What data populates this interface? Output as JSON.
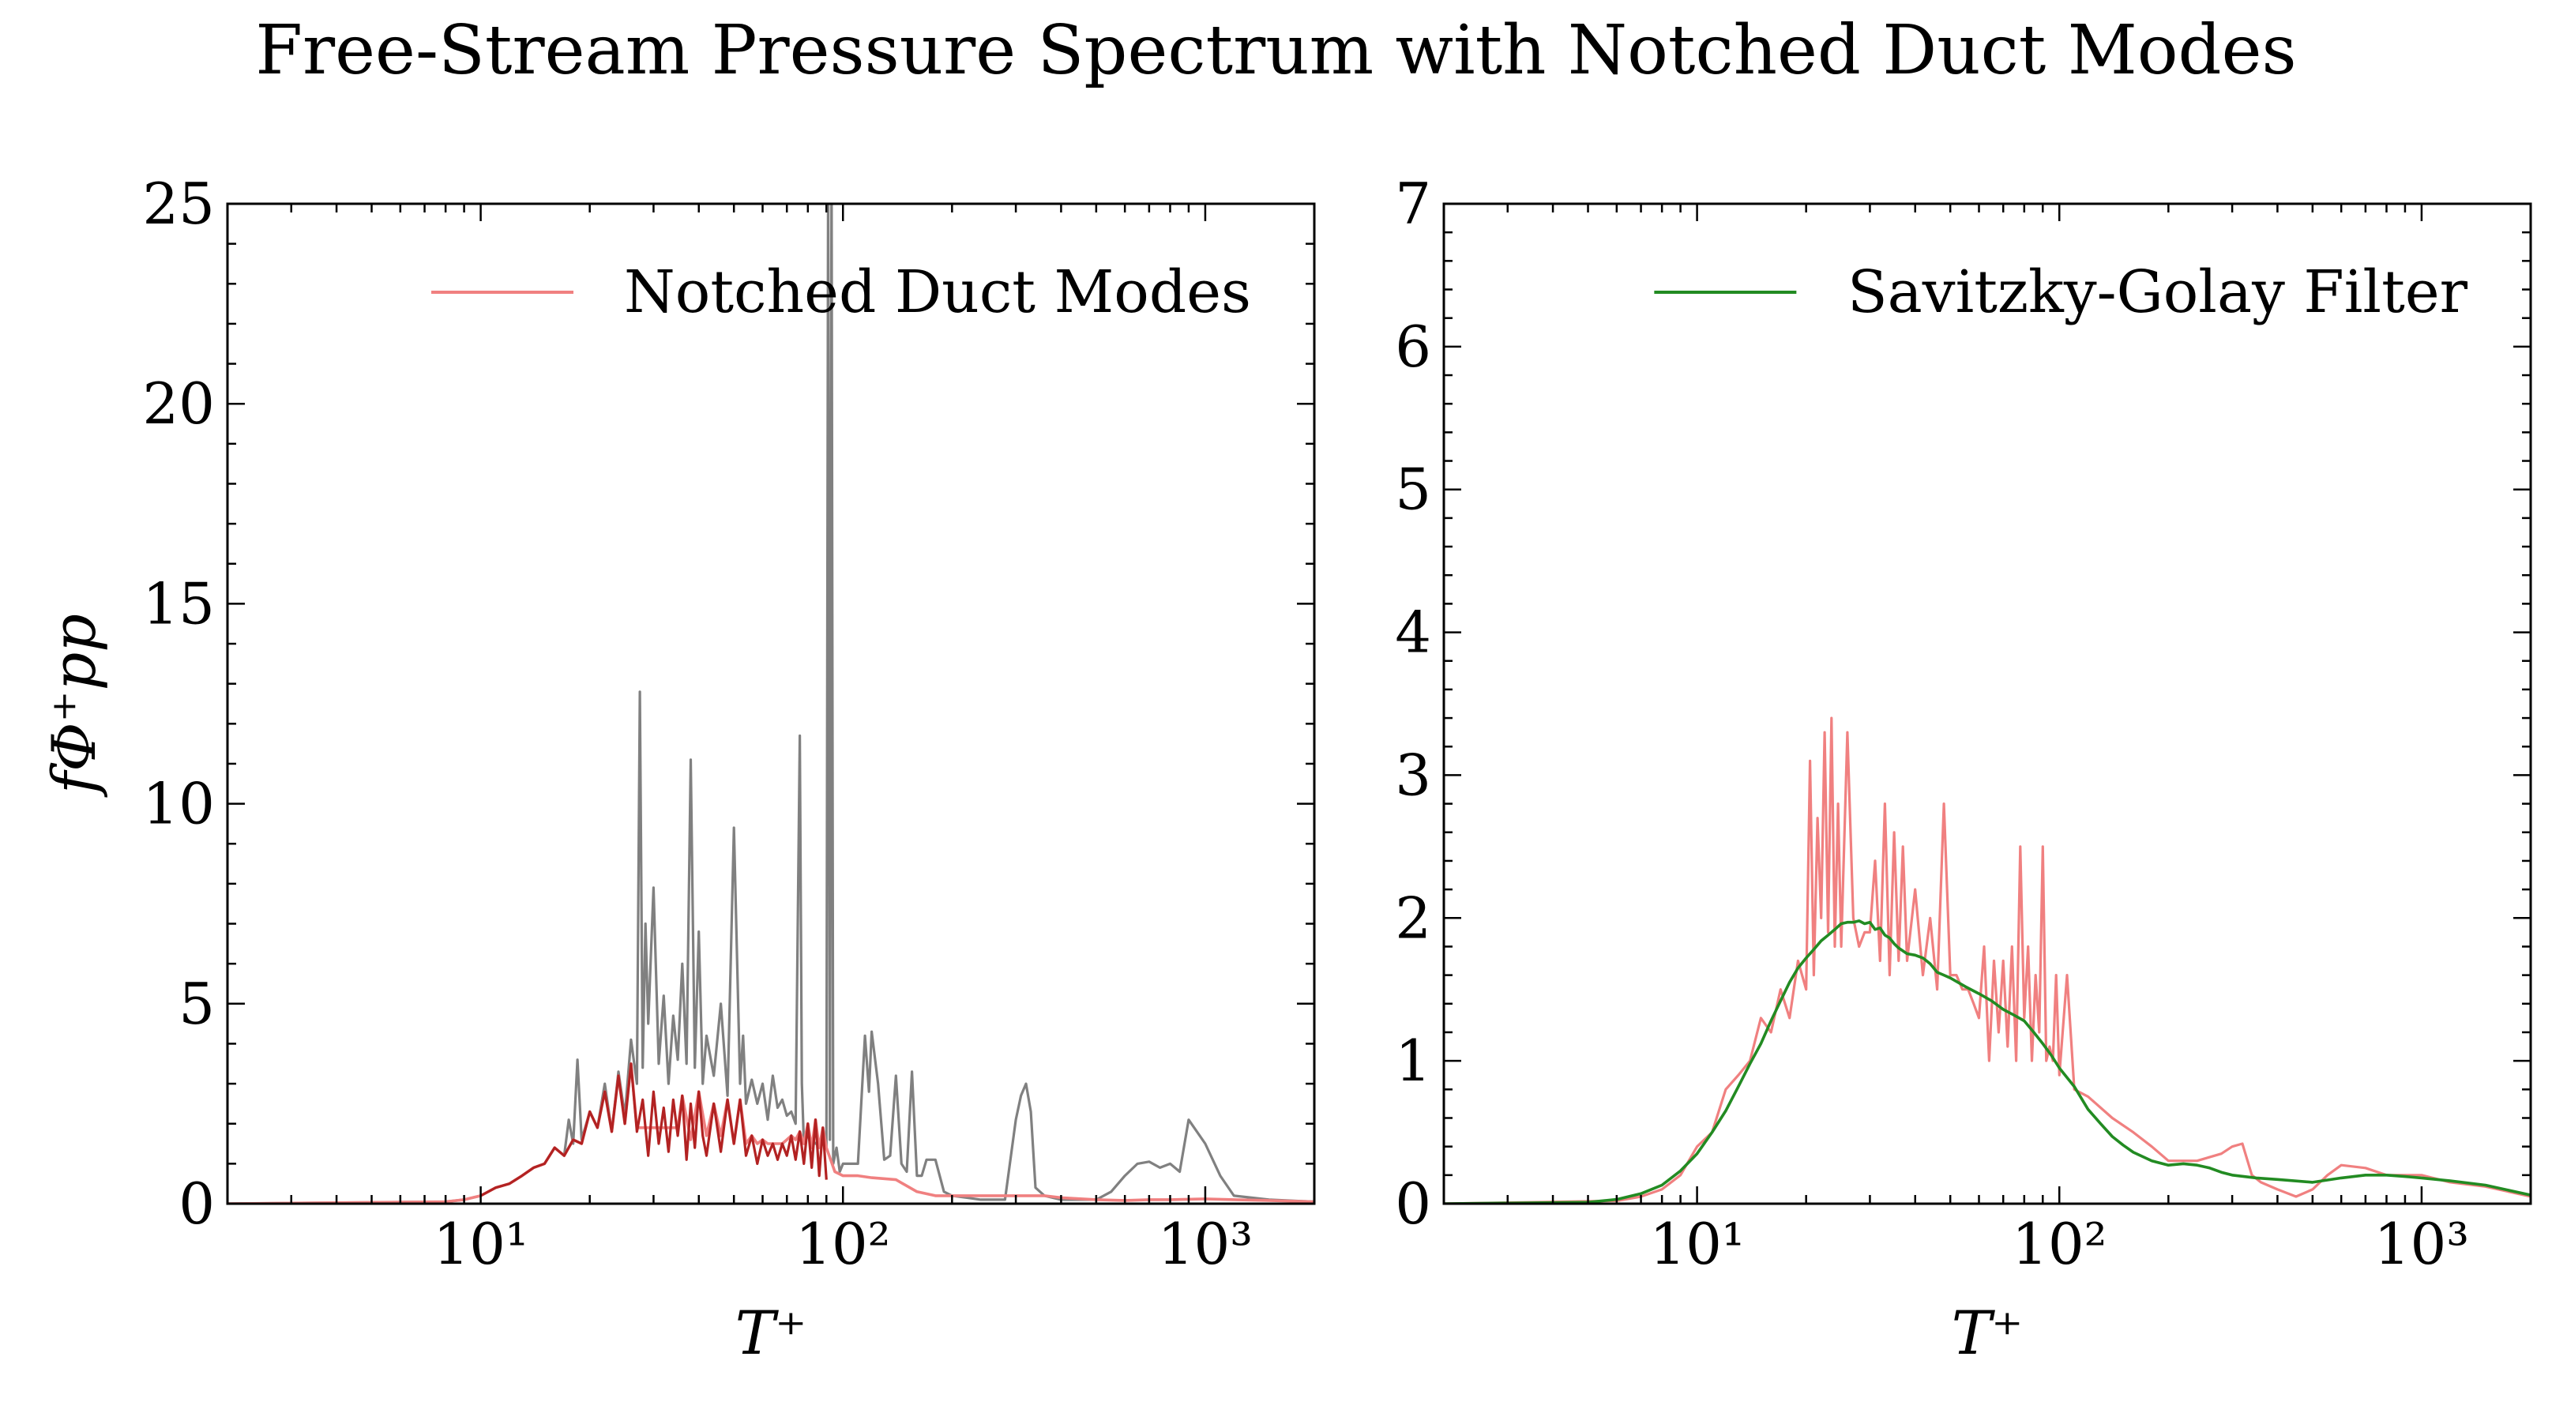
{
  "figure": {
    "title": "Free-Stream Pressure Spectrum with Notched Duct Modes"
  },
  "colors": {
    "raw": "#808080",
    "notched": "#f08080",
    "notched_overlay": "#b22222",
    "filter": "#228b22"
  },
  "chart_data": [
    {
      "type": "line",
      "panel": "left",
      "xscale": "log",
      "xlim": [
        2,
        2000
      ],
      "ylim": [
        0,
        25
      ],
      "xticks": [
        10,
        100,
        1000
      ],
      "xtick_labels": [
        "10¹",
        "10²",
        "10³"
      ],
      "yticks": [
        0,
        5,
        10,
        15,
        20,
        25
      ],
      "ytick_labels": [
        "0",
        "5",
        "10",
        "15",
        "20",
        "25"
      ],
      "xlabel": "T⁺",
      "ylabel": "fΦ⁺pp",
      "legend": {
        "entries": [
          "Notched Duct Modes"
        ],
        "position": "top-right"
      },
      "grid": false,
      "series": [
        {
          "name": "",
          "color": "#808080",
          "x": [
            2,
            8,
            9,
            10,
            11,
            12,
            13,
            14,
            15,
            16,
            17,
            17.5,
            18,
            18.5,
            19,
            20,
            21,
            22,
            23,
            24,
            25,
            26,
            27,
            27.5,
            28,
            28.5,
            29,
            30,
            31,
            32,
            33,
            34,
            35,
            36,
            37,
            38,
            39,
            40,
            41,
            42,
            44,
            46,
            48,
            50,
            52,
            53,
            54,
            56,
            58,
            60,
            62,
            64,
            66,
            68,
            70,
            72,
            74,
            76,
            77,
            78,
            80,
            82,
            84,
            86,
            88,
            90,
            91,
            92,
            93,
            94,
            95,
            96,
            98,
            100,
            105,
            110,
            115,
            118,
            120,
            125,
            130,
            135,
            140,
            145,
            150,
            155,
            160,
            165,
            170,
            180,
            190,
            200,
            220,
            240,
            260,
            280,
            300,
            310,
            320,
            330,
            340,
            360,
            400,
            500,
            550,
            600,
            650,
            700,
            750,
            800,
            850,
            900,
            1000,
            1100,
            1200,
            1500,
            2000
          ],
          "y": [
            0,
            0.05,
            0.1,
            0.2,
            0.4,
            0.5,
            0.7,
            0.9,
            1.0,
            1.4,
            1.2,
            2.1,
            1.5,
            3.6,
            1.6,
            2.3,
            1.9,
            3.0,
            1.8,
            3.3,
            2.2,
            4.1,
            3.0,
            12.8,
            3.4,
            7.0,
            4.5,
            7.9,
            3.5,
            5.2,
            3.0,
            4.7,
            3.6,
            6.0,
            3.5,
            11.1,
            3.4,
            6.8,
            3.0,
            4.2,
            3.2,
            5.0,
            2.7,
            9.4,
            3.0,
            4.2,
            2.5,
            3.1,
            2.5,
            3.0,
            2.1,
            3.2,
            2.4,
            2.6,
            2.2,
            2.3,
            2.0,
            11.7,
            3.0,
            1.5,
            1.7,
            1.6,
            1.5,
            1.5,
            1.6,
            1.4,
            26,
            1.6,
            26,
            1.0,
            1.2,
            1.4,
            0.8,
            1.0,
            1.0,
            1.0,
            4.2,
            2.8,
            4.3,
            3.0,
            1.1,
            1.2,
            3.2,
            1.0,
            0.8,
            3.3,
            0.7,
            0.7,
            1.1,
            1.1,
            0.3,
            0.2,
            0.15,
            0.1,
            0.1,
            0.1,
            2.1,
            2.7,
            3.0,
            2.3,
            0.4,
            0.2,
            0.1,
            0.1,
            0.3,
            0.7,
            1.0,
            1.05,
            0.9,
            1.0,
            0.8,
            2.1,
            1.5,
            0.7,
            0.2,
            0.1,
            0.05
          ]
        },
        {
          "name": "Notched Duct Modes",
          "color": "#f08080",
          "x": [
            2,
            8,
            9,
            10,
            11,
            12,
            13,
            14,
            15,
            16,
            17,
            18,
            19,
            20,
            21,
            22,
            23,
            24,
            25,
            26,
            27,
            28,
            29,
            30,
            31,
            32,
            33,
            34,
            35,
            36,
            38,
            40,
            42,
            44,
            46,
            48,
            50,
            52,
            54,
            56,
            58,
            60,
            62,
            64,
            66,
            68,
            70,
            72,
            74,
            76,
            78,
            80,
            82,
            84,
            86,
            88,
            90,
            95,
            100,
            105,
            110,
            120,
            140,
            160,
            180,
            200,
            240,
            280,
            320,
            360,
            400,
            500,
            600,
            700,
            800,
            1000,
            1200,
            1500,
            2000
          ],
          "y": [
            0,
            0.05,
            0.1,
            0.2,
            0.4,
            0.5,
            0.7,
            0.9,
            1.0,
            1.4,
            1.2,
            1.6,
            1.5,
            2.3,
            1.9,
            2.8,
            1.8,
            3.2,
            2.0,
            3.5,
            1.9,
            1.9,
            1.9,
            1.9,
            1.9,
            1.9,
            1.9,
            1.9,
            1.9,
            2.7,
            1.6,
            2.8,
            1.7,
            2.5,
            1.7,
            2.6,
            1.5,
            2.6,
            1.5,
            1.7,
            1.5,
            1.6,
            1.5,
            1.5,
            1.5,
            1.5,
            1.6,
            1.7,
            1.6,
            1.8,
            1.5,
            2.0,
            1.4,
            2.1,
            1.4,
            1.9,
            1.4,
            0.8,
            0.7,
            0.7,
            0.7,
            0.65,
            0.6,
            0.3,
            0.2,
            0.2,
            0.2,
            0.2,
            0.2,
            0.2,
            0.15,
            0.1,
            0.08,
            0.1,
            0.1,
            0.12,
            0.1,
            0.08,
            0.05
          ]
        },
        {
          "name": "",
          "color": "#b22222",
          "x": [
            10,
            11,
            12,
            13,
            14,
            15,
            16,
            17,
            18,
            19,
            20,
            21,
            22,
            23,
            24,
            25,
            26,
            27,
            28,
            29,
            30,
            31,
            32,
            33,
            34,
            35,
            36,
            37,
            38,
            39,
            40,
            41,
            42,
            44,
            46,
            48,
            50,
            52,
            54,
            56,
            58,
            60,
            62,
            64,
            66,
            68,
            70,
            72,
            74,
            76,
            78,
            80,
            82,
            84,
            86,
            88,
            90
          ],
          "y": [
            0.2,
            0.4,
            0.5,
            0.7,
            0.9,
            1.0,
            1.4,
            1.2,
            1.6,
            1.5,
            2.3,
            1.9,
            2.8,
            1.8,
            3.2,
            2.0,
            3.5,
            1.8,
            2.6,
            1.2,
            2.8,
            1.5,
            2.4,
            1.3,
            2.6,
            1.7,
            2.7,
            1.1,
            2.5,
            1.4,
            2.8,
            1.7,
            1.2,
            2.5,
            1.3,
            2.6,
            1.5,
            2.6,
            1.2,
            1.7,
            1.0,
            1.6,
            1.2,
            1.5,
            1.1,
            1.5,
            1.2,
            1.7,
            1.1,
            1.8,
            1.0,
            2.0,
            0.9,
            2.1,
            0.7,
            1.9,
            0.6
          ]
        }
      ]
    },
    {
      "type": "line",
      "panel": "right",
      "xscale": "log",
      "xlim": [
        2,
        2000
      ],
      "ylim": [
        0,
        7
      ],
      "xticks": [
        10,
        100,
        1000
      ],
      "xtick_labels": [
        "10¹",
        "10²",
        "10³"
      ],
      "yticks": [
        0,
        1,
        2,
        3,
        4,
        5,
        6,
        7
      ],
      "ytick_labels": [
        "0",
        "1",
        "2",
        "3",
        "4",
        "5",
        "6",
        "7"
      ],
      "xlabel": "T⁺",
      "ylabel": "",
      "legend": {
        "entries": [
          "Savitzky-Golay Filter"
        ],
        "position": "top-right"
      },
      "grid": false,
      "series": [
        {
          "name": "",
          "color": "#f08080",
          "x": [
            2,
            6,
            7,
            8,
            9,
            10,
            11,
            12,
            13,
            14,
            15,
            16,
            17,
            18,
            19,
            20,
            20.5,
            21,
            21.5,
            22,
            22.5,
            23,
            23.5,
            24,
            24.5,
            25,
            26,
            27,
            28,
            29,
            30,
            31,
            32,
            33,
            34,
            35,
            36,
            37,
            38,
            40,
            42,
            44,
            46,
            48,
            50,
            52,
            54,
            56,
            58,
            60,
            62,
            64,
            66,
            68,
            70,
            72,
            74,
            76,
            78,
            80,
            82,
            84,
            86,
            88,
            90,
            92,
            94,
            96,
            98,
            100,
            105,
            110,
            120,
            140,
            160,
            180,
            200,
            240,
            280,
            300,
            320,
            340,
            360,
            400,
            450,
            500,
            550,
            600,
            700,
            800,
            1000,
            1200,
            1500,
            2000
          ],
          "y": [
            0,
            0.02,
            0.05,
            0.1,
            0.2,
            0.4,
            0.5,
            0.8,
            0.9,
            1.0,
            1.3,
            1.2,
            1.5,
            1.3,
            1.7,
            1.5,
            3.1,
            1.6,
            2.7,
            2.0,
            3.3,
            1.9,
            3.4,
            1.8,
            2.8,
            1.8,
            3.3,
            2.0,
            1.8,
            1.9,
            1.9,
            2.4,
            1.7,
            2.8,
            1.6,
            2.6,
            1.7,
            2.5,
            1.7,
            2.2,
            1.6,
            2.0,
            1.5,
            2.8,
            1.6,
            1.6,
            1.5,
            1.5,
            1.4,
            1.3,
            1.8,
            1.0,
            1.7,
            1.2,
            1.7,
            1.1,
            1.8,
            1.0,
            2.5,
            1.3,
            1.8,
            1.0,
            1.6,
            1.2,
            2.5,
            1.0,
            1.1,
            1.0,
            1.6,
            0.9,
            1.6,
            0.8,
            0.75,
            0.6,
            0.5,
            0.4,
            0.3,
            0.3,
            0.35,
            0.4,
            0.42,
            0.2,
            0.15,
            0.1,
            0.05,
            0.1,
            0.2,
            0.27,
            0.25,
            0.2,
            0.2,
            0.15,
            0.12,
            0.05
          ]
        },
        {
          "name": "Savitzky-Golay Filter",
          "color": "#228b22",
          "x": [
            2,
            5,
            6,
            7,
            8,
            9,
            10,
            11,
            12,
            13,
            14,
            15,
            16,
            17,
            18,
            19,
            20,
            21,
            22,
            23,
            24,
            25,
            26,
            27,
            28,
            29,
            30,
            31,
            32,
            33,
            34,
            35,
            36,
            38,
            40,
            42,
            44,
            46,
            48,
            50,
            55,
            60,
            65,
            70,
            75,
            80,
            85,
            90,
            95,
            100,
            110,
            120,
            130,
            140,
            150,
            160,
            180,
            200,
            220,
            240,
            260,
            280,
            300,
            350,
            400,
            500,
            600,
            700,
            800,
            900,
            1000,
            1200,
            1500,
            2000
          ],
          "y": [
            0,
            0.01,
            0.03,
            0.07,
            0.13,
            0.23,
            0.35,
            0.5,
            0.65,
            0.82,
            0.98,
            1.12,
            1.28,
            1.42,
            1.55,
            1.65,
            1.72,
            1.78,
            1.84,
            1.88,
            1.92,
            1.96,
            1.97,
            1.97,
            1.98,
            1.96,
            1.97,
            1.92,
            1.93,
            1.88,
            1.86,
            1.82,
            1.79,
            1.75,
            1.74,
            1.72,
            1.68,
            1.62,
            1.6,
            1.58,
            1.52,
            1.47,
            1.42,
            1.36,
            1.32,
            1.28,
            1.2,
            1.12,
            1.04,
            0.95,
            0.82,
            0.66,
            0.56,
            0.47,
            0.41,
            0.36,
            0.3,
            0.27,
            0.28,
            0.27,
            0.25,
            0.22,
            0.2,
            0.18,
            0.17,
            0.15,
            0.18,
            0.2,
            0.2,
            0.19,
            0.18,
            0.16,
            0.13,
            0.06
          ]
        }
      ]
    }
  ]
}
